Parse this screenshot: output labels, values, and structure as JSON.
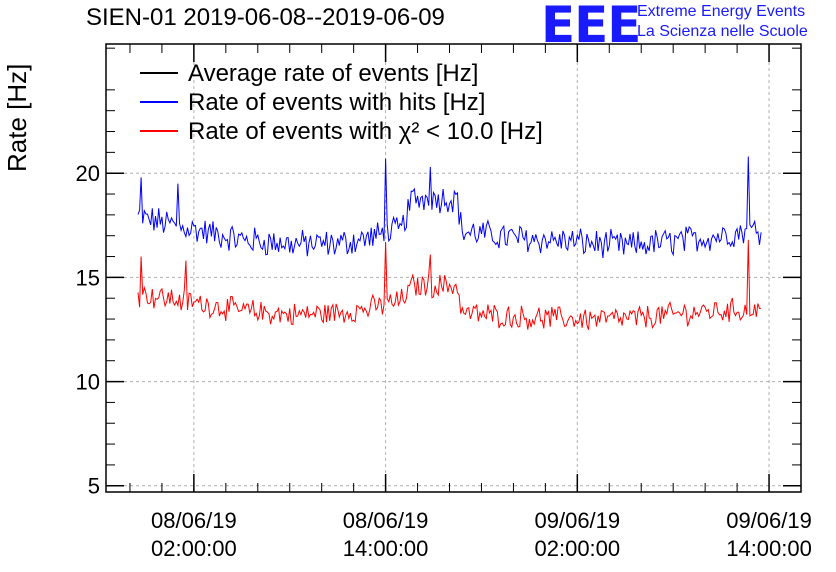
{
  "header": {
    "title": "SIEN-01 2019-06-08--2019-06-09",
    "logo_letters": "EEE",
    "logo_line1": "Extreme Energy Events",
    "logo_line2": "La Scienza nelle Scuole"
  },
  "colors": {
    "average": "#000000",
    "hits": "#0000ff",
    "chi2": "#ff0000",
    "logo": "#1a1aff",
    "grid": "#b0b0b0"
  },
  "chart_data": {
    "type": "line",
    "ylabel": "Rate [Hz]",
    "xlabel": "",
    "ylim": [
      4.7,
      26.2
    ],
    "yticks": [
      5,
      10,
      15,
      20
    ],
    "xlim": [
      "2019-06-07 20:30",
      "2019-06-09 16:00"
    ],
    "xticks": [
      {
        "date": "08/06/19",
        "time": "02:00:00",
        "at": "2019-06-08 02:00"
      },
      {
        "date": "08/06/19",
        "time": "14:00:00",
        "at": "2019-06-08 14:00"
      },
      {
        "date": "09/06/19",
        "time": "02:00:00",
        "at": "2019-06-09 02:00"
      },
      {
        "date": "09/06/19",
        "time": "14:00:00",
        "at": "2019-06-09 14:00"
      }
    ],
    "grid": true,
    "legend_position": "top-left",
    "x_range": [
      "2019-06-07 22:30",
      "2019-06-09 13:30"
    ],
    "series": [
      {
        "name": "Average rate of events [Hz]",
        "key": "average",
        "points": []
      },
      {
        "name": "Rate of events with hits [Hz]",
        "key": "hits",
        "points": [
          [
            "2019-06-07 22:30",
            17.9
          ],
          [
            "2019-06-08 02:00",
            17.3
          ],
          [
            "2019-06-08 05:00",
            16.8
          ],
          [
            "2019-06-08 08:00",
            16.6
          ],
          [
            "2019-06-08 11:00",
            16.6
          ],
          [
            "2019-06-08 13:00",
            16.9
          ],
          [
            "2019-06-08 15:00",
            17.3
          ],
          [
            "2019-06-08 15:40",
            18.8
          ],
          [
            "2019-06-08 18:30",
            18.8
          ],
          [
            "2019-06-08 18:45",
            17.2
          ],
          [
            "2019-06-08 22:00",
            16.9
          ],
          [
            "2019-06-09 02:00",
            16.7
          ],
          [
            "2019-06-09 05:00",
            16.5
          ],
          [
            "2019-06-09 09:00",
            16.8
          ],
          [
            "2019-06-09 13:30",
            17.3
          ]
        ],
        "noise": 0.6,
        "spikes": [
          [
            "2019-06-08 14:00",
            20.7
          ],
          [
            "2019-06-08 16:45",
            20.3
          ],
          [
            "2019-06-09 12:40",
            20.8
          ],
          [
            "2019-06-07 22:40",
            19.8
          ],
          [
            "2019-06-08 01:00",
            19.5
          ]
        ]
      },
      {
        "name": "Rate of events with χ² < 10.0 [Hz]",
        "key": "chi2",
        "points": [
          [
            "2019-06-07 22:30",
            14.2
          ],
          [
            "2019-06-08 02:00",
            13.8
          ],
          [
            "2019-06-08 05:00",
            13.4
          ],
          [
            "2019-06-08 08:00",
            13.2
          ],
          [
            "2019-06-08 11:00",
            13.3
          ],
          [
            "2019-06-08 13:00",
            13.5
          ],
          [
            "2019-06-08 15:00",
            13.9
          ],
          [
            "2019-06-08 15:40",
            14.6
          ],
          [
            "2019-06-08 18:30",
            14.6
          ],
          [
            "2019-06-08 18:45",
            13.3
          ],
          [
            "2019-06-08 22:00",
            13.1
          ],
          [
            "2019-06-09 02:00",
            13.0
          ],
          [
            "2019-06-09 05:00",
            13.0
          ],
          [
            "2019-06-09 09:00",
            13.3
          ],
          [
            "2019-06-09 13:30",
            13.5
          ]
        ],
        "noise": 0.5,
        "spikes": [
          [
            "2019-06-08 14:00",
            16.7
          ],
          [
            "2019-06-08 16:45",
            16.1
          ],
          [
            "2019-06-09 12:40",
            16.8
          ],
          [
            "2019-06-07 22:40",
            16.0
          ],
          [
            "2019-06-08 01:30",
            15.8
          ]
        ]
      }
    ]
  }
}
